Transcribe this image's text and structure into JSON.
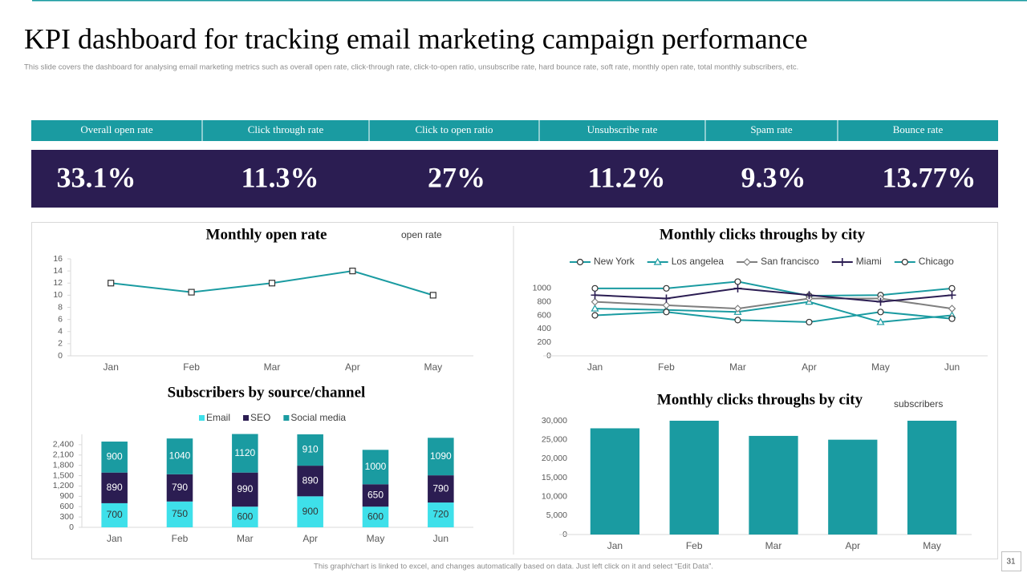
{
  "title": "KPI dashboard for tracking email marketing campaign performance",
  "subtitle": "This slide covers the dashboard for analysing email marketing metrics such as overall open rate, click-through rate, click-to-open ratio, unsubscribe rate, hard bounce rate, soft rate, monthly open rate, total monthly subscribers, etc.",
  "kpis": [
    {
      "label": "Overall open rate",
      "value": "33.1%"
    },
    {
      "label": "Click through rate",
      "value": "11.3%"
    },
    {
      "label": "Click to open ratio",
      "value": "27%"
    },
    {
      "label": "Unsubscribe rate",
      "value": "11.2%"
    },
    {
      "label": "Spam rate",
      "value": "9.3%"
    },
    {
      "label": "Bounce rate",
      "value": "13.77%"
    }
  ],
  "footer": "This graph/chart is linked to excel, and changes automatically based on data. Just left click on it and select “Edit Data”.",
  "page_number": "31",
  "chart_data": [
    {
      "type": "line",
      "title": "Monthly open rate",
      "categories": [
        "Jan",
        "Feb",
        "Mar",
        "Apr",
        "May"
      ],
      "series": [
        {
          "name": "open rate",
          "color": "#1a9ba1",
          "marker": "square",
          "values": [
            12,
            10.5,
            12,
            14,
            10
          ]
        }
      ],
      "ylim": [
        0,
        16
      ],
      "yticks": [
        0,
        2,
        4,
        6,
        8,
        10,
        12,
        14,
        16
      ],
      "legend": "top-right"
    },
    {
      "type": "line",
      "title": "Monthly clicks throughs by city",
      "categories": [
        "Jan",
        "Feb",
        "Mar",
        "Apr",
        "May",
        "Jun"
      ],
      "series": [
        {
          "name": "New York",
          "color": "#1a9ba1",
          "marker": "circle",
          "values": [
            1000,
            1000,
            1100,
            890,
            900,
            1000
          ]
        },
        {
          "name": "Los angelea",
          "color": "#1a9ba1",
          "marker": "triangle",
          "values": [
            700,
            680,
            650,
            800,
            500,
            600
          ]
        },
        {
          "name": "San francisco",
          "color": "#7f7f7f",
          "marker": "diamond",
          "values": [
            800,
            750,
            700,
            850,
            850,
            700
          ]
        },
        {
          "name": "Miami",
          "color": "#2b1d52",
          "marker": "plus",
          "values": [
            900,
            850,
            1000,
            900,
            800,
            900
          ]
        },
        {
          "name": "Chicago",
          "color": "#1a9ba1",
          "marker": "circle",
          "values": [
            600,
            650,
            530,
            500,
            650,
            550
          ]
        }
      ],
      "ylim": [
        0,
        1200
      ],
      "yticks": [
        0,
        200,
        400,
        600,
        800,
        1000
      ],
      "legend": "top"
    },
    {
      "type": "stacked-bar",
      "title": "Subscribers by source/channel",
      "categories": [
        "Jan",
        "Feb",
        "Mar",
        "Apr",
        "May",
        "Jun"
      ],
      "series": [
        {
          "name": "Email",
          "color": "#3ee0ea",
          "values": [
            700,
            750,
            600,
            900,
            600,
            720
          ]
        },
        {
          "name": "SEO",
          "color": "#2b1d52",
          "values": [
            890,
            790,
            990,
            890,
            650,
            790
          ]
        },
        {
          "name": "Social media",
          "color": "#1a9ba1",
          "values": [
            900,
            1040,
            1120,
            910,
            1000,
            1090
          ]
        }
      ],
      "ylim": [
        0,
        2700
      ],
      "yticks": [
        0,
        300,
        600,
        900,
        {
          "value": 1200,
          "label": "1,200"
        },
        {
          "value": 1500,
          "label": "1,500"
        },
        {
          "value": 1800,
          "label": "1,800"
        },
        {
          "value": 2100,
          "label": "2,100"
        },
        {
          "value": 2400,
          "label": "2,400"
        }
      ],
      "legend": "top"
    },
    {
      "type": "bar",
      "title": "Monthly clicks throughs by city",
      "categories": [
        "Jan",
        "Feb",
        "Mar",
        "Apr",
        "May"
      ],
      "series": [
        {
          "name": "subscribers",
          "color": "#1a9ba1",
          "values": [
            28000,
            30000,
            26000,
            25000,
            30000
          ]
        }
      ],
      "ylim": [
        0,
        30000
      ],
      "yticks": [
        0,
        {
          "value": 5000,
          "label": "5,000"
        },
        {
          "value": 10000,
          "label": "10,000"
        },
        {
          "value": 15000,
          "label": "15,000"
        },
        {
          "value": 20000,
          "label": "20,000"
        },
        {
          "value": 25000,
          "label": "25,000"
        },
        {
          "value": 30000,
          "label": "30,000"
        }
      ],
      "legend": "top-right"
    }
  ]
}
